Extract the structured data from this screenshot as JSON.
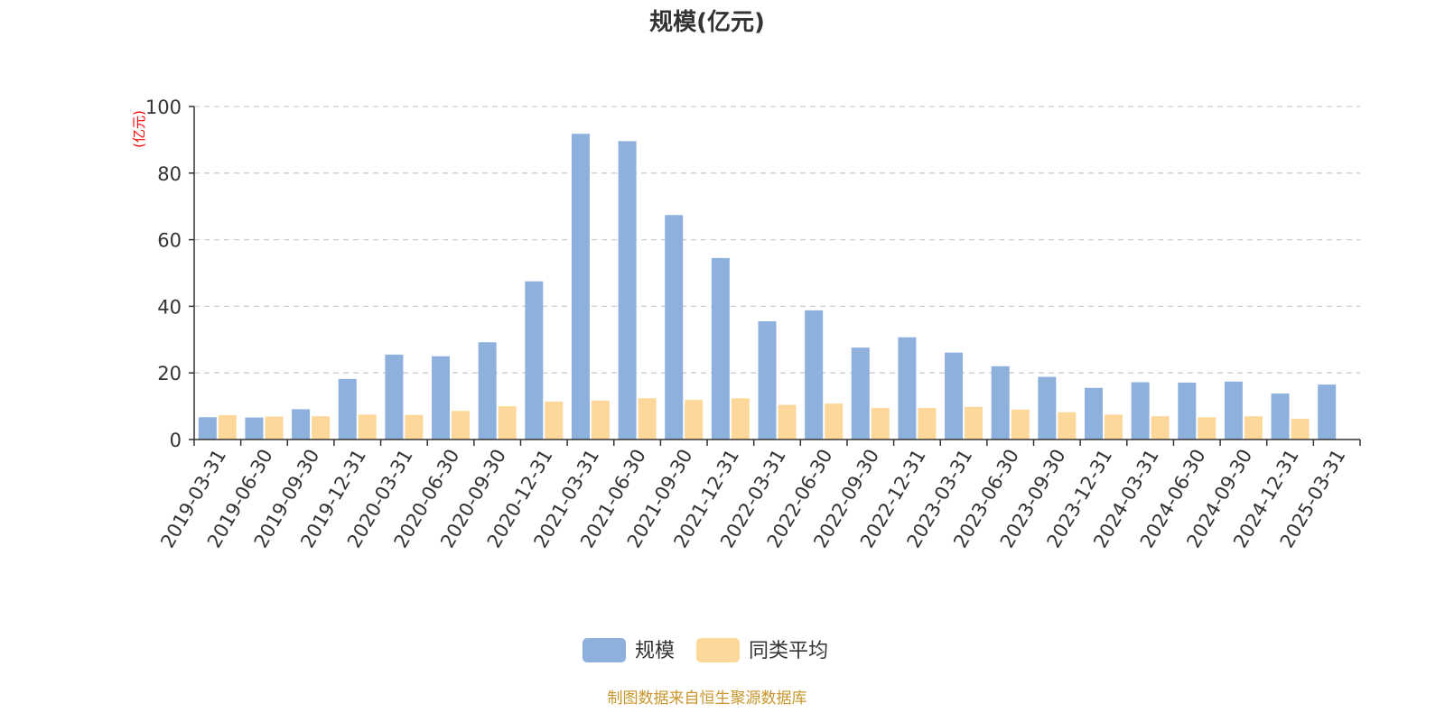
{
  "chart_data": {
    "type": "bar",
    "title": "规模(亿元)",
    "ylabel": "(亿元)",
    "xlabel": "",
    "ylim": [
      0,
      100
    ],
    "yticks": [
      0,
      20,
      40,
      60,
      80,
      100
    ],
    "grid": true,
    "legend_position": "bottom",
    "categories": [
      "2019-03-31",
      "2019-06-30",
      "2019-09-30",
      "2019-12-31",
      "2020-03-31",
      "2020-06-30",
      "2020-09-30",
      "2020-12-31",
      "2021-03-31",
      "2021-06-30",
      "2021-09-30",
      "2021-12-31",
      "2022-03-31",
      "2022-06-30",
      "2022-09-30",
      "2022-12-31",
      "2023-03-31",
      "2023-06-30",
      "2023-09-30",
      "2023-12-31",
      "2024-03-31",
      "2024-06-30",
      "2024-09-30",
      "2024-12-31",
      "2025-03-31"
    ],
    "series": [
      {
        "name": "规模",
        "color": "#8eb0dd",
        "values": [
          6.7,
          6.6,
          9.1,
          18.2,
          25.5,
          25.0,
          29.2,
          47.5,
          91.8,
          89.6,
          67.4,
          54.5,
          35.5,
          38.8,
          27.6,
          30.7,
          26.1,
          22.0,
          18.8,
          15.5,
          17.2,
          17.1,
          17.4,
          13.8,
          16.5
        ]
      },
      {
        "name": "同类平均",
        "color": "#fdd89a",
        "values": [
          7.3,
          6.9,
          7.0,
          7.5,
          7.4,
          8.6,
          10.0,
          11.4,
          11.7,
          12.4,
          11.9,
          12.4,
          10.4,
          10.8,
          9.5,
          9.5,
          9.8,
          9.0,
          8.2,
          7.5,
          7.0,
          6.7,
          7.0,
          6.2,
          null
        ]
      }
    ],
    "footer": "制图数据来自恒生聚源数据库",
    "footer_color": "#c9962e",
    "title_color": "#333333",
    "ylabel_color": "#ff0000",
    "axis_color": "#333333",
    "grid_color": "#cccccc"
  }
}
